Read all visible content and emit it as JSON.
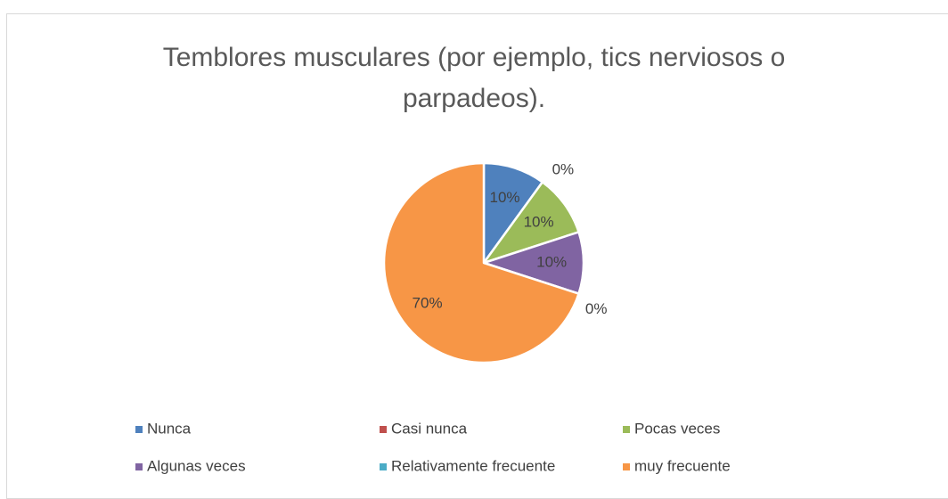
{
  "chart_data": {
    "type": "pie",
    "title": "Temblores musculares (por ejemplo, tics nerviosos o parpadeos).",
    "categories": [
      "Nunca",
      "Casi nunca",
      "Pocas veces",
      "Algunas veces",
      "Relativamente frecuente",
      "muy frecuente"
    ],
    "values": [
      10,
      0,
      10,
      10,
      0,
      70
    ],
    "value_labels": [
      "10%",
      "0%",
      "10%",
      "10%",
      "0%",
      "70%"
    ],
    "colors": [
      "#4f81bd",
      "#c0504d",
      "#9bbb59",
      "#8064a2",
      "#4bacc6",
      "#f79646"
    ],
    "legend": "bottom"
  }
}
